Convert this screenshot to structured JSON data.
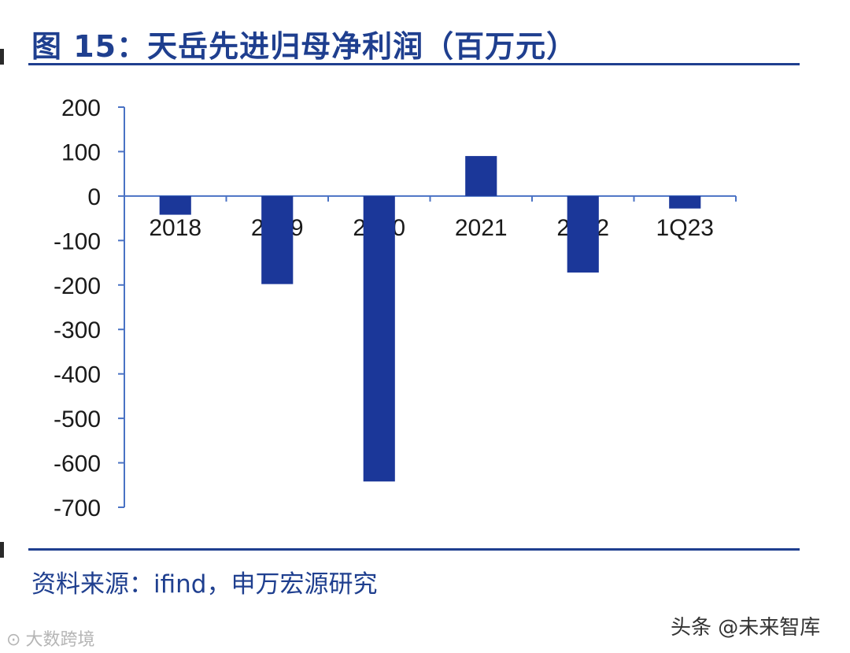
{
  "title": "图 15：天岳先进归母净利润（百万元）",
  "source": "资料来源：ifind，申万宏源研究",
  "watermark_right": "头条 @未来智库",
  "watermark_left": "大数跨境",
  "colors": {
    "bar": "#1b3799",
    "axis": "#4a72c4",
    "title": "#1f3f8f",
    "rule": "#1f3f8f"
  },
  "chart_data": {
    "type": "bar",
    "title": "",
    "xlabel": "",
    "ylabel": "",
    "categories": [
      "2018",
      "2019",
      "2020",
      "2021",
      "2022",
      "1Q23"
    ],
    "values": [
      -42,
      -198,
      -642,
      90,
      -172,
      -28
    ],
    "ylim": [
      -700,
      200
    ],
    "yticks": [
      200,
      100,
      0,
      -100,
      -200,
      -300,
      -400,
      -500,
      -600,
      -700
    ],
    "grid": false,
    "legend": "none"
  }
}
